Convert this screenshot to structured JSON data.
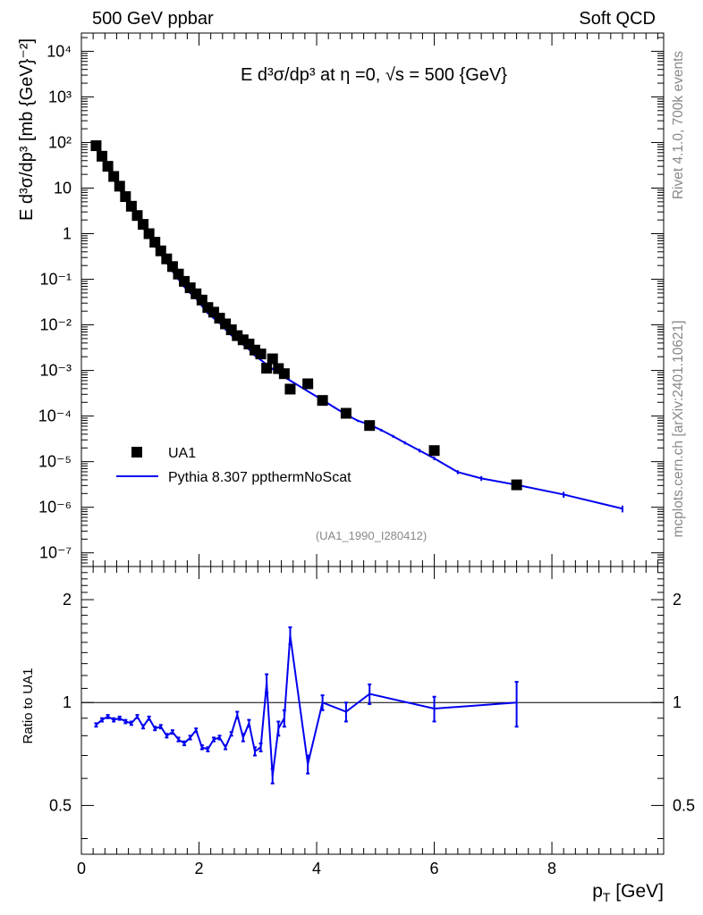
{
  "header": {
    "left": "500 GeV ppbar",
    "right": "Soft QCD"
  },
  "side_labels": {
    "top": "Rivet 4.1.0,  700k events",
    "bottom": "mcplots.cern.ch [arXiv:2401.10621]"
  },
  "colors": {
    "mc": "#0000ee",
    "data": "#000000",
    "watermark": "#888888"
  },
  "chart_data": [
    {
      "type": "scatter",
      "title": "E  d³σ/dp³ at η =0, √s = 500 {GeV}",
      "ylabel": "E d³σ/dp³ [mb {GeV}⁻²]",
      "xlabel": "",
      "yscale": "log",
      "xlim": [
        0,
        9.9
      ],
      "ylim_log10": [
        -7.3,
        4.4
      ],
      "yticks_log10": [
        -7,
        -6,
        -5,
        -4,
        -3,
        -2,
        -1,
        0,
        1,
        2,
        3,
        4
      ],
      "ytick_labels": [
        "10⁻⁷",
        "10⁻⁶",
        "10⁻⁵",
        "10⁻⁴",
        "10⁻³",
        "10⁻²",
        "10⁻¹",
        "1",
        "10",
        "10²",
        "10³",
        "10⁴"
      ],
      "watermark": "(UA1_1990_I280412)",
      "legend": {
        "position": "lower-left",
        "entries": [
          "UA1",
          "Pythia 8.307 ppthermNoScat"
        ]
      },
      "series": [
        {
          "name": "UA1",
          "style": "markers",
          "x": [
            0.25,
            0.35,
            0.45,
            0.55,
            0.65,
            0.75,
            0.85,
            0.95,
            1.05,
            1.15,
            1.25,
            1.35,
            1.45,
            1.55,
            1.65,
            1.75,
            1.85,
            1.95,
            2.05,
            2.15,
            2.25,
            2.35,
            2.45,
            2.55,
            2.65,
            2.75,
            2.85,
            2.95,
            3.05,
            3.15,
            3.25,
            3.35,
            3.45,
            3.55,
            3.85,
            4.1,
            4.5,
            4.9,
            6.0,
            7.4
          ],
          "y": [
            85,
            50,
            30,
            18,
            11,
            6.5,
            4.0,
            2.5,
            1.6,
            1.0,
            0.65,
            0.42,
            0.28,
            0.19,
            0.13,
            0.09,
            0.065,
            0.048,
            0.035,
            0.024,
            0.019,
            0.014,
            0.0105,
            0.0078,
            0.0058,
            0.0047,
            0.0038,
            0.0028,
            0.0023,
            0.00112,
            0.0018,
            0.0011,
            0.00085,
            0.00039,
            0.00051,
            0.00022,
            0.000115,
            6.2e-05,
            1.75e-05,
            3.1e-06
          ]
        },
        {
          "name": "Pythia 8.307 ppthermNoScat",
          "style": "line",
          "x": [
            0.25,
            0.35,
            0.45,
            0.55,
            0.65,
            0.75,
            0.85,
            0.95,
            1.05,
            1.15,
            1.25,
            1.35,
            1.45,
            1.55,
            1.65,
            1.75,
            1.85,
            1.95,
            2.05,
            2.15,
            2.25,
            2.35,
            2.45,
            2.55,
            2.65,
            2.75,
            2.85,
            2.95,
            3.05,
            3.15,
            3.25,
            3.35,
            3.45,
            3.55,
            3.7,
            3.85,
            4.1,
            4.3,
            4.5,
            4.7,
            4.9,
            5.1,
            5.3,
            5.5,
            5.75,
            6.0,
            6.4,
            6.8,
            7.4,
            8.2,
            9.2
          ],
          "y": [
            74,
            43,
            27,
            16,
            9.5,
            5.6,
            3.5,
            2.2,
            1.35,
            0.88,
            0.54,
            0.36,
            0.23,
            0.15,
            0.1,
            0.068,
            0.05,
            0.038,
            0.026,
            0.018,
            0.014,
            0.011,
            0.008,
            0.0059,
            0.0047,
            0.0037,
            0.0029,
            0.0021,
            0.0017,
            0.00135,
            0.00108,
            0.00088,
            0.00072,
            0.0006,
            0.00046,
            0.00035,
            0.000225,
            0.000155,
            0.000108,
            7.9e-05,
            6.5e-05,
            4.9e-05,
            3.6e-05,
            2.6e-05,
            1.75e-05,
            1.18e-05,
            5.9e-06,
            4.3e-06,
            3.1e-06,
            1.9e-06,
            9.3e-07
          ],
          "errors_rel": [
            0.03,
            0.03,
            0.03,
            0.03,
            0.03,
            0.03,
            0.03,
            0.03,
            0.03,
            0.03,
            0.03,
            0.03,
            0.03,
            0.03,
            0.03,
            0.03,
            0.03,
            0.03,
            0.03,
            0.03,
            0.03,
            0.03,
            0.03,
            0.03,
            0.03,
            0.03,
            0.03,
            0.03,
            0.03,
            0.03,
            0.03,
            0.03,
            0.03,
            0.03,
            0.03,
            0.03,
            0.04,
            0.05,
            0.06,
            0.06,
            0.06,
            0.07,
            0.07,
            0.08,
            0.09,
            0.09,
            0.1,
            0.12,
            0.14,
            0.15,
            0.17
          ]
        }
      ]
    },
    {
      "type": "line",
      "ylabel": "Ratio to UA1",
      "xlabel": "p_T [GeV]",
      "xlim": [
        0,
        9.9
      ],
      "ylim": [
        0.36,
        2.5
      ],
      "ylog": true,
      "yticks": [
        0.5,
        1,
        2
      ],
      "ytick_labels": [
        "0.5",
        "1",
        "2"
      ],
      "xticks": [
        0,
        2,
        4,
        6,
        8
      ],
      "xtick_labels": [
        "0",
        "2",
        "4",
        "6",
        "8"
      ],
      "reference": 1,
      "series": [
        {
          "name": "Pythia 8.307 ppthermNoScat",
          "x": [
            0.25,
            0.35,
            0.45,
            0.55,
            0.65,
            0.75,
            0.85,
            0.95,
            1.05,
            1.15,
            1.25,
            1.35,
            1.45,
            1.55,
            1.65,
            1.75,
            1.85,
            1.95,
            2.05,
            2.15,
            2.25,
            2.35,
            2.45,
            2.55,
            2.65,
            2.75,
            2.85,
            2.95,
            3.05,
            3.15,
            3.25,
            3.35,
            3.45,
            3.55,
            3.85,
            4.1,
            4.5,
            4.9,
            6.0,
            7.4
          ],
          "y": [
            0.86,
            0.89,
            0.91,
            0.89,
            0.9,
            0.88,
            0.87,
            0.91,
            0.85,
            0.9,
            0.84,
            0.85,
            0.8,
            0.82,
            0.78,
            0.76,
            0.79,
            0.83,
            0.74,
            0.73,
            0.78,
            0.79,
            0.74,
            0.81,
            0.92,
            0.79,
            0.87,
            0.72,
            0.74,
            1.14,
            0.61,
            0.84,
            0.9,
            1.57,
            0.66,
            1.0,
            0.94,
            1.06,
            0.96,
            1.0
          ],
          "errors": [
            0.01,
            0.01,
            0.01,
            0.01,
            0.01,
            0.01,
            0.01,
            0.01,
            0.01,
            0.01,
            0.01,
            0.01,
            0.01,
            0.01,
            0.01,
            0.01,
            0.01,
            0.01,
            0.01,
            0.01,
            0.01,
            0.01,
            0.01,
            0.01,
            0.02,
            0.02,
            0.02,
            0.02,
            0.02,
            0.07,
            0.03,
            0.04,
            0.05,
            0.09,
            0.04,
            0.05,
            0.06,
            0.07,
            0.08,
            0.15
          ]
        }
      ]
    }
  ]
}
